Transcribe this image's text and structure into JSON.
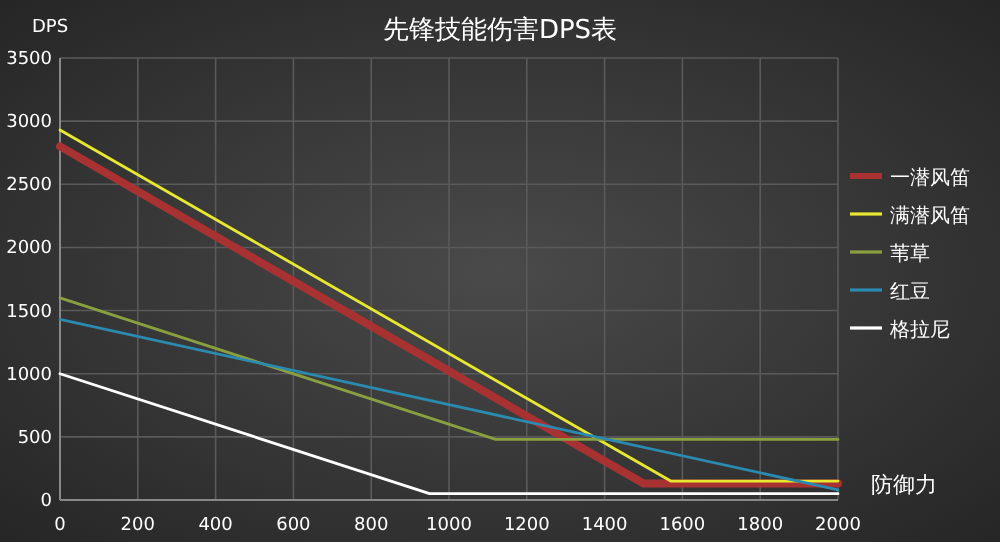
{
  "chart_data": {
    "type": "line",
    "title": "先锋技能伤害DPS表",
    "xlabel": "防御力",
    "ylabel": "DPS",
    "xlim": [
      0,
      2000
    ],
    "xticks": [
      0,
      200,
      400,
      600,
      800,
      1000,
      1200,
      1400,
      1600,
      1800,
      2000
    ],
    "ylim": [
      0,
      3500
    ],
    "yticks": [
      0,
      500,
      1000,
      1500,
      2000,
      2500,
      3000,
      3500
    ],
    "grid": true,
    "legend": "right",
    "marker": "none",
    "line_style": "solid",
    "series": [
      {
        "name": "一潜风笛",
        "color": "#a83232",
        "x": [
          0,
          1500,
          2000
        ],
        "values": [
          2800,
          130,
          130
        ]
      },
      {
        "name": "满潜风笛",
        "color": "#e8e830",
        "x": [
          0,
          1570,
          2000
        ],
        "values": [
          2930,
          150,
          150
        ]
      },
      {
        "name": "苇草",
        "color": "#8aa040",
        "x": [
          0,
          1120,
          2000
        ],
        "values": [
          1600,
          480,
          480
        ]
      },
      {
        "name": "红豆",
        "color": "#2a8ab0",
        "x": [
          0,
          2000
        ],
        "values": [
          1430,
          80
        ]
      },
      {
        "name": "格拉尼",
        "color": "#ffffff",
        "x": [
          0,
          950,
          2000
        ],
        "values": [
          1000,
          50,
          50
        ]
      }
    ]
  }
}
